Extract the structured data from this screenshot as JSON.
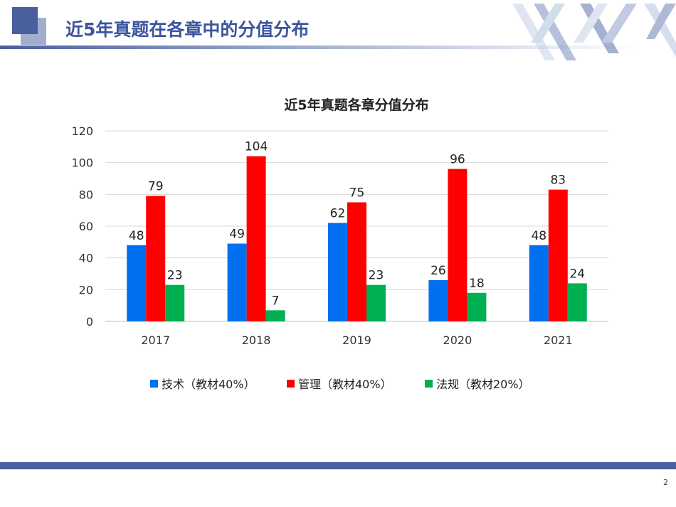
{
  "slide": {
    "title": "近5年真题在各章中的分值分布",
    "page_number": "2"
  },
  "colors": {
    "accent": "#4a5f9e",
    "tech": "#0070f0",
    "mgmt": "#ff0000",
    "law": "#00b050"
  },
  "chart_data": {
    "type": "bar",
    "title": "近5年真题各章分值分布",
    "categories": [
      "2017",
      "2018",
      "2019",
      "2020",
      "2021"
    ],
    "series": [
      {
        "name": "技术（教材40%）",
        "color": "#0070f0",
        "values": [
          48,
          49,
          62,
          26,
          48
        ]
      },
      {
        "name": "管理（教材40%）",
        "color": "#ff0000",
        "values": [
          79,
          104,
          75,
          96,
          83
        ]
      },
      {
        "name": "法规（教材20%）",
        "color": "#00b050",
        "values": [
          23,
          7,
          23,
          18,
          24
        ]
      }
    ],
    "ylim": [
      0,
      120
    ],
    "yticks": [
      0,
      20,
      40,
      60,
      80,
      100,
      120
    ],
    "grid": true,
    "legend": "bottom",
    "data_labels": true
  }
}
